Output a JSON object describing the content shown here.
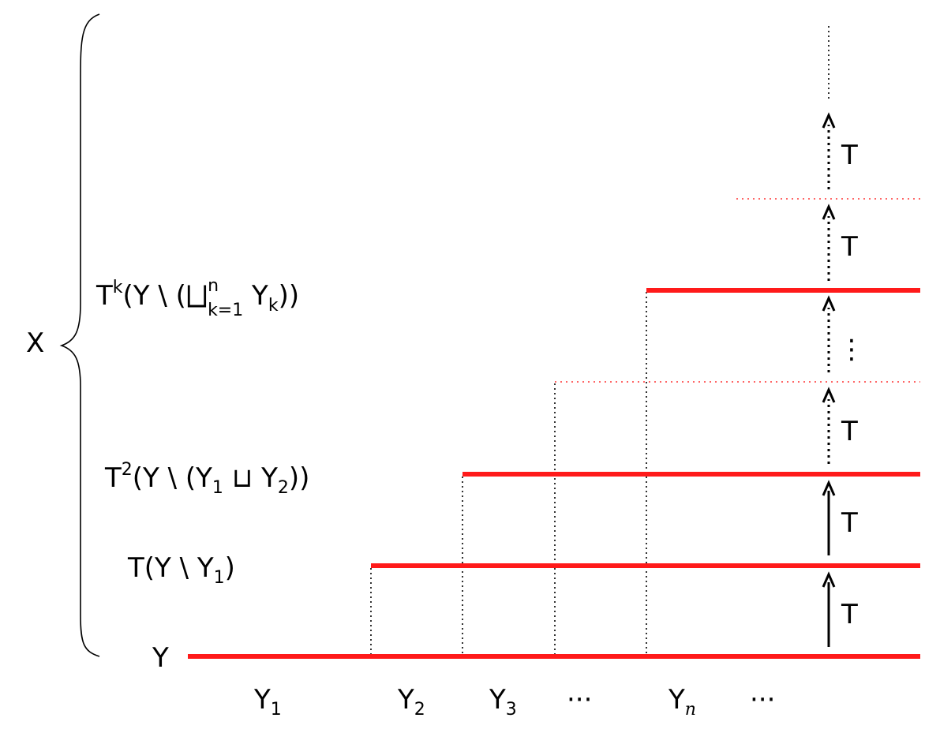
{
  "labels": {
    "x": "X",
    "y": "Y",
    "level1": {
      "main": "T(Y \\ Y",
      "sub": "1",
      "close": ")"
    },
    "level2": {
      "t": "T",
      "sup": "2",
      "main": "(Y \\ (Y",
      "s1": "1",
      "mid": " ⊔ Y",
      "s2": "2",
      "close": "))"
    },
    "levelk": {
      "t": "T",
      "sup": "k",
      "main": "(Y \\ (",
      "bigcup": "⨆",
      "supn": "n",
      "subk": "k=1",
      "y": " Y",
      "subyk": "k",
      "close": "))"
    },
    "transform": "T",
    "vdots": "⋮",
    "bottom": {
      "y1": {
        "base": "Y",
        "sub": "1"
      },
      "y2": {
        "base": "Y",
        "sub": "2"
      },
      "y3": {
        "base": "Y",
        "sub": "3"
      },
      "dots1": "···",
      "yn": {
        "base": "Y",
        "sub": "n"
      },
      "dots2": "···"
    }
  }
}
